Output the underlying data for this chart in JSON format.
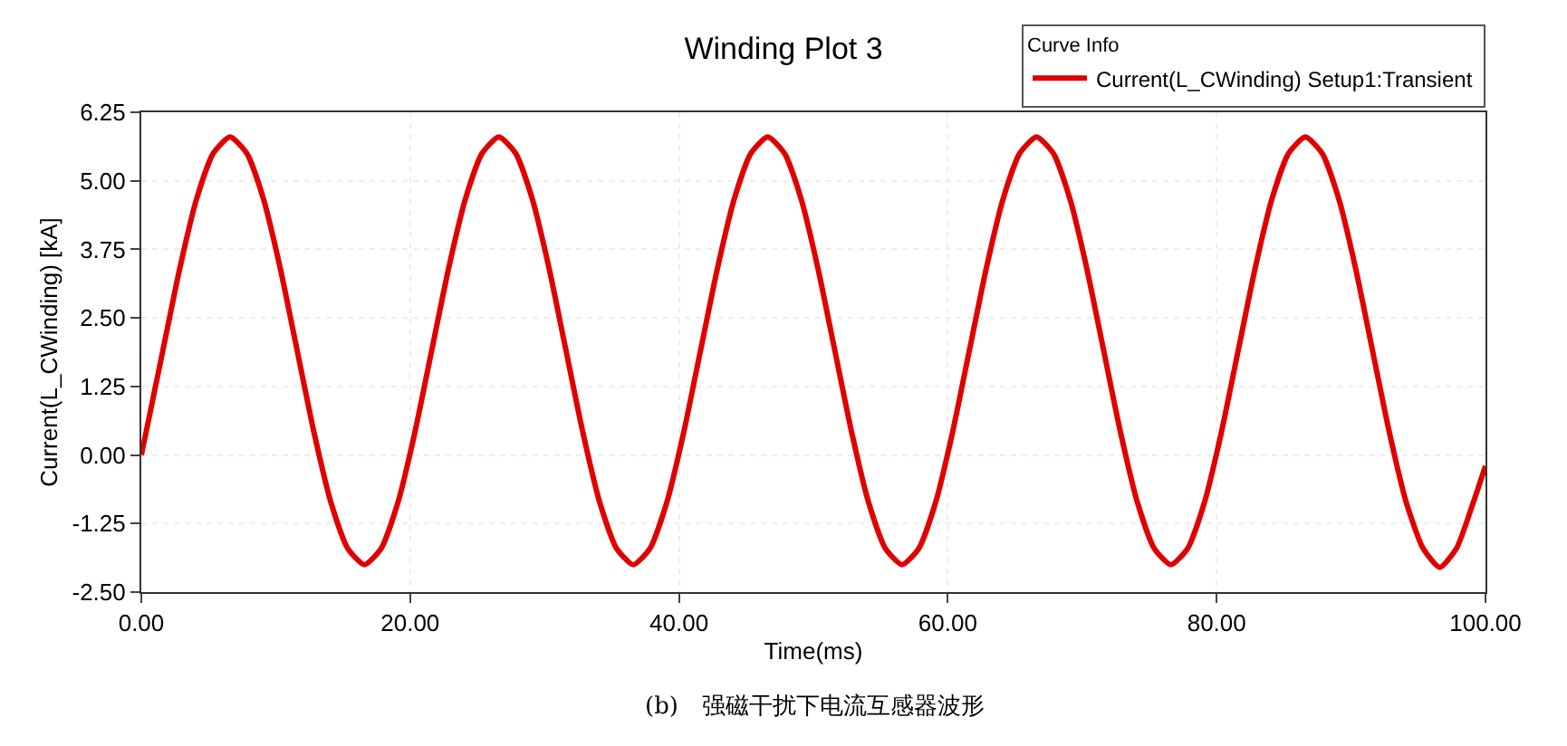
{
  "chart_data": {
    "type": "line",
    "title": "Winding Plot 3",
    "xlabel": "Time(ms)",
    "ylabel": "Current(L_CWinding) [kA]",
    "legend_title": "Curve Info",
    "legend": "top right",
    "grid": true,
    "marker": "none",
    "line_style": "solid",
    "xlim": [
      0,
      100
    ],
    "xticks": [
      {
        "value": 0,
        "label": "0.00"
      },
      {
        "value": 20,
        "label": "20.00"
      },
      {
        "value": 40,
        "label": "40.00"
      },
      {
        "value": 60,
        "label": "60.00"
      },
      {
        "value": 80,
        "label": "80.00"
      },
      {
        "value": 100,
        "label": "100.00"
      }
    ],
    "ylim": [
      -2.5,
      6.25
    ],
    "yticks": [
      {
        "value": -2.5,
        "label": "-2.50"
      },
      {
        "value": -1.25,
        "label": "-1.25"
      },
      {
        "value": 0,
        "label": "0.00"
      },
      {
        "value": 1.25,
        "label": "1.25"
      },
      {
        "value": 2.5,
        "label": "2.50"
      },
      {
        "value": 3.75,
        "label": "3.75"
      },
      {
        "value": 5,
        "label": "5.00"
      },
      {
        "value": 6.25,
        "label": "6.25"
      }
    ],
    "annotations": [
      "(b)　强磁干扰下电流互感器波形"
    ],
    "series": [
      {
        "name": "Current(L_CWinding) Setup1:Transient",
        "color": "#e00000",
        "x": [
          0,
          0.35,
          1.6,
          2.85,
          4.1,
          5.35,
          6.6,
          7.85,
          9.1,
          10.35,
          11.6,
          12.85,
          14.1,
          15.35,
          16.6,
          17.85,
          19.1,
          20.35,
          21.6,
          22.85,
          24.1,
          25.35,
          26.6,
          27.85,
          29.1,
          30.35,
          31.6,
          32.85,
          34.1,
          35.35,
          36.6,
          37.85,
          39.1,
          40.35,
          41.6,
          42.85,
          44.1,
          45.35,
          46.6,
          47.85,
          49.1,
          50.35,
          51.6,
          52.85,
          54.1,
          55.35,
          56.6,
          57.85,
          59.1,
          60.35,
          61.6,
          62.85,
          64.1,
          65.35,
          66.6,
          67.85,
          69.1,
          70.35,
          71.6,
          72.85,
          74.1,
          75.35,
          76.6,
          77.85,
          79.1,
          80.35,
          81.6,
          82.85,
          84.1,
          85.35,
          86.6,
          87.85,
          89.1,
          90.35,
          91.6,
          92.85,
          94.1,
          95.35,
          96.6,
          97.85,
          99.1,
          100
        ],
        "values": [
          0,
          0.41,
          1.9,
          3.39,
          4.66,
          5.5,
          5.8,
          5.5,
          4.66,
          3.39,
          1.9,
          0.41,
          -0.86,
          -1.7,
          -2.0,
          -1.7,
          -0.86,
          0.41,
          1.9,
          3.39,
          4.66,
          5.5,
          5.8,
          5.5,
          4.66,
          3.39,
          1.9,
          0.41,
          -0.86,
          -1.7,
          -2.0,
          -1.7,
          -0.86,
          0.41,
          1.9,
          3.39,
          4.66,
          5.5,
          5.8,
          5.5,
          4.66,
          3.39,
          1.9,
          0.41,
          -0.86,
          -1.7,
          -2.0,
          -1.7,
          -0.86,
          0.41,
          1.9,
          3.39,
          4.66,
          5.5,
          5.8,
          5.5,
          4.66,
          3.39,
          1.9,
          0.41,
          -0.86,
          -1.7,
          -2.0,
          -1.7,
          -0.86,
          0.41,
          1.9,
          3.39,
          4.66,
          5.5,
          5.8,
          5.5,
          4.66,
          3.39,
          1.9,
          0.41,
          -0.86,
          -1.7,
          -2.05,
          -1.7,
          -0.86,
          -0.2
        ]
      }
    ]
  }
}
